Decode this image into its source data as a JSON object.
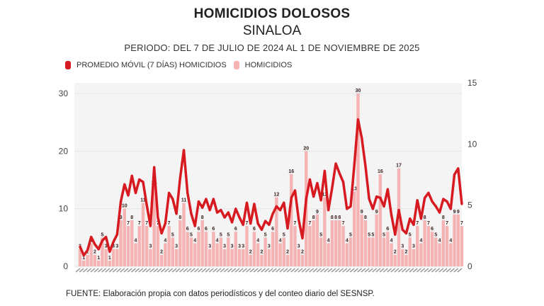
{
  "title": "HOMICIDIOS DOLOSOS",
  "subtitle": "SINALOA",
  "period": "PERIODO: DEL 7 DE JULIO DE 2024 AL 1 DE NOVIEMBRE DE 2025",
  "source": "FUENTE: Elaboración propia con datos periodísticos y del conteo diario del SESNSP.",
  "colors": {
    "moving_average": "#d71920",
    "homicides": "#f5b3b3",
    "plot_background": "#f4f4f4"
  },
  "chart_data": {
    "type": "bar+line",
    "legend": {
      "placement": "top-left",
      "entries": [
        "PROMEDIO MÓVIL (7 DÍAS) HOMICIDIOS",
        "HOMICIDIOS"
      ]
    },
    "grid": true,
    "left_axis": {
      "ylim": [
        0,
        30
      ],
      "ticks": [
        "0",
        "10",
        "20",
        "30"
      ]
    },
    "right_axis": {
      "ylim": [
        0,
        15
      ],
      "ticks": [
        "0",
        "5",
        "10",
        "15"
      ]
    },
    "series": [
      {
        "name": "PROMEDIO MÓVIL (7 DÍAS) HOMICIDIOS",
        "type": "line",
        "axis": "right",
        "values": [
          1.6,
          0.9,
          1.3,
          2.4,
          1.8,
          1.4,
          2.1,
          2.4,
          1.2,
          2.0,
          2.6,
          5.3,
          6.7,
          5.8,
          7.4,
          6.0,
          7.1,
          6.9,
          5.0,
          3.3,
          8.1,
          4.0,
          2.7,
          3.5,
          6.0,
          5.5,
          4.3,
          7.2,
          9.5,
          6.0,
          4.3,
          3.3,
          5.3,
          4.8,
          5.5,
          4.6,
          5.5,
          4.4,
          4.6,
          4.0,
          4.4,
          3.6,
          4.7,
          4.0,
          3.4,
          5.2,
          3.5,
          5.1,
          3.5,
          3.0,
          3.7,
          3.4,
          4.3,
          4.9,
          4.6,
          5.2,
          3.1,
          5.6,
          6.2,
          3.8,
          2.3,
          5.5,
          7.1,
          5.7,
          6.8,
          5.4,
          7.8,
          4.6,
          6.4,
          8.4,
          7.6,
          6.9,
          4.7,
          4.9,
          8.3,
          12.0,
          10.5,
          8.2,
          5.5,
          4.7,
          5.7,
          5.6,
          4.9,
          6.3,
          4.2,
          2.6,
          4.6,
          3.0,
          2.7,
          3.9,
          3.4,
          5.4,
          3.9,
          5.6,
          6.0,
          5.3,
          4.9,
          4.4,
          5.5,
          5.3,
          4.7,
          7.5,
          8.0,
          5.1
        ]
      },
      {
        "name": "HOMICIDIOS",
        "type": "bar",
        "axis": "left",
        "values": [
          3,
          1,
          2,
          4,
          2,
          1,
          5,
          3,
          1,
          3,
          3,
          8,
          10,
          7,
          8,
          4,
          7,
          11,
          7,
          3,
          14,
          7,
          2,
          4,
          7,
          5,
          3,
          8,
          11,
          6,
          5,
          4,
          6,
          8,
          6,
          3,
          6,
          4,
          5,
          3,
          5,
          3,
          6,
          3,
          3,
          7,
          2,
          6,
          4,
          2,
          5,
          3,
          6,
          12,
          4,
          5,
          2,
          16,
          7,
          3,
          2,
          20,
          7,
          8,
          9,
          5,
          12,
          4,
          8,
          8,
          8,
          7,
          4,
          5,
          13,
          30,
          9,
          8,
          5,
          5,
          9,
          16,
          5,
          6,
          4,
          2,
          17,
          3,
          2,
          5,
          3,
          7,
          4,
          8,
          7,
          6,
          5,
          4,
          8,
          7,
          4,
          9,
          9,
          7
        ]
      }
    ]
  }
}
